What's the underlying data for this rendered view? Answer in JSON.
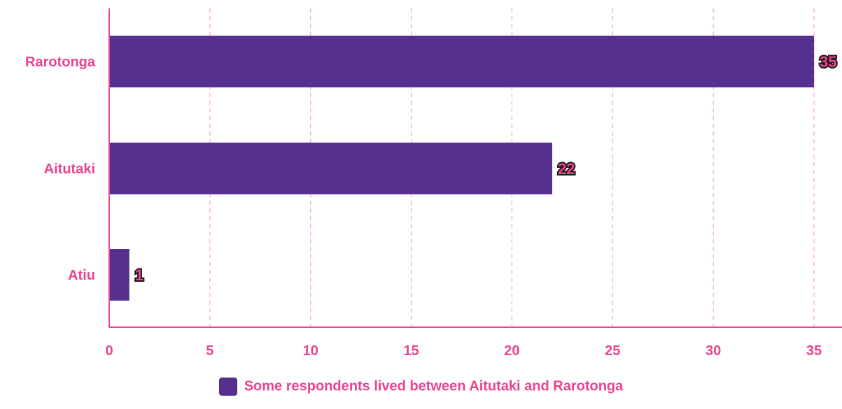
{
  "colors": {
    "bar": "#55308f",
    "accent": "#e8448f",
    "grid": "#f5a7c8",
    "label_outline": "#1a1a1a"
  },
  "legend": {
    "label": "Some respondents lived between Aitutaki and Rarotonga"
  },
  "chart_data": {
    "type": "bar",
    "orientation": "horizontal",
    "categories": [
      "Rarotonga",
      "Aitutaki",
      "Atiu"
    ],
    "series": [
      {
        "name": "Some respondents lived between Aitutaki and Rarotonga",
        "values": [
          35,
          22,
          1
        ]
      }
    ],
    "data_labels": [
      "35",
      "22",
      "1"
    ],
    "x_ticks": [
      "0",
      "5",
      "10",
      "15",
      "20",
      "25",
      "30",
      "35"
    ],
    "xlim": [
      0,
      35
    ],
    "grid": "vertical-dashed",
    "legend_position": "bottom",
    "title": "",
    "xlabel": "",
    "ylabel": ""
  }
}
